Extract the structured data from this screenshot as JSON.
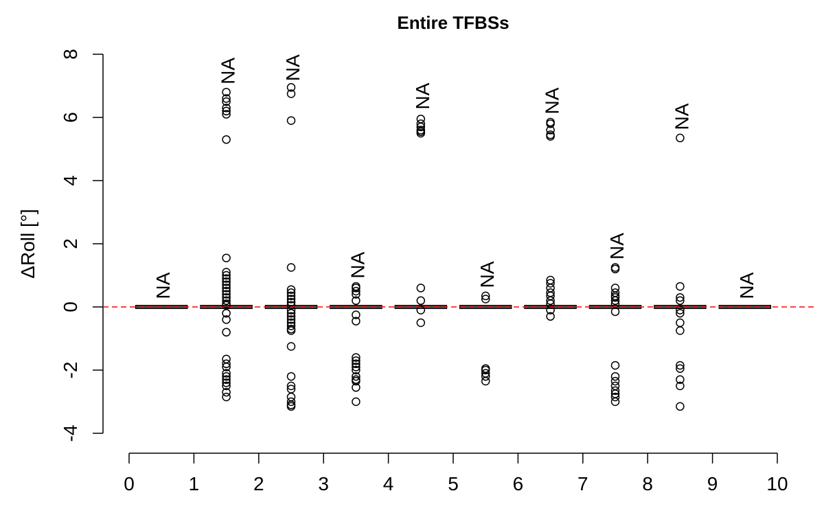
{
  "chart_data": {
    "type": "boxplot",
    "title": "Entire TFBSs",
    "xlabel": "",
    "ylabel": "ΔRoll [°]",
    "xlim": [
      0,
      10
    ],
    "ylim": [
      -4,
      8
    ],
    "xticks": [
      "0",
      "1",
      "2",
      "3",
      "4",
      "5",
      "6",
      "7",
      "8",
      "9",
      "10"
    ],
    "yticks": [
      "-4",
      "-2",
      "0",
      "2",
      "4",
      "6",
      "8"
    ],
    "reference_line": {
      "y": 0,
      "color": "#ff0000",
      "style": "dashed"
    },
    "groups": [
      {
        "x": 0.5,
        "median": 0,
        "label": "NA",
        "label_y": 0.25,
        "outliers": []
      },
      {
        "x": 1.5,
        "median": 0,
        "label": "NA",
        "label_y": 7.05,
        "outliers": [
          6.8,
          6.6,
          6.5,
          6.3,
          6.2,
          6.1,
          5.3,
          1.55,
          1.1,
          1.0,
          0.9,
          0.8,
          0.7,
          0.6,
          0.5,
          0.4,
          0.3,
          0.2,
          0.1,
          0.05,
          -0.2,
          -0.4,
          -0.8,
          -1.65,
          -1.8,
          -1.9,
          -2.1,
          -2.2,
          -2.3,
          -2.4,
          -2.5,
          -2.7,
          -2.85
        ]
      },
      {
        "x": 2.5,
        "median": 0,
        "label": "NA",
        "label_y": 7.15,
        "outliers": [
          6.95,
          6.75,
          5.9,
          1.25,
          0.55,
          0.45,
          0.35,
          0.25,
          0.15,
          0.05,
          -0.1,
          -0.2,
          -0.3,
          -0.4,
          -0.5,
          -0.6,
          -0.7,
          -0.75,
          -1.25,
          -2.2,
          -2.5,
          -2.6,
          -2.85,
          -3.0,
          -3.1,
          -3.15
        ]
      },
      {
        "x": 3.5,
        "median": 0,
        "label": "NA",
        "label_y": 0.9,
        "outliers": [
          0.65,
          0.6,
          0.5,
          0.4,
          0.2,
          -0.25,
          -0.45,
          -1.6,
          -1.7,
          -1.8,
          -1.9,
          -2.0,
          -2.2,
          -2.3,
          -2.35,
          -2.55,
          -3.0
        ]
      },
      {
        "x": 4.5,
        "median": 0,
        "label": "NA",
        "label_y": 6.25,
        "outliers": [
          5.95,
          5.8,
          5.7,
          5.6,
          5.55,
          5.5,
          0.6,
          0.2,
          -0.1,
          -0.5
        ]
      },
      {
        "x": 5.5,
        "median": 0,
        "label": "NA",
        "label_y": 0.6,
        "outliers": [
          0.35,
          0.25,
          -1.95,
          -2.0,
          -2.1,
          -2.2,
          -2.35
        ]
      },
      {
        "x": 6.5,
        "median": 0,
        "label": "NA",
        "label_y": 6.1,
        "outliers": [
          5.85,
          5.8,
          5.6,
          5.45,
          5.4,
          0.85,
          0.75,
          0.6,
          0.45,
          0.35,
          0.2,
          0.1,
          -0.1,
          -0.3
        ]
      },
      {
        "x": 7.5,
        "median": 0,
        "label": "NA",
        "label_y": 1.5,
        "outliers": [
          1.25,
          1.2,
          0.6,
          0.45,
          0.35,
          0.3,
          0.2,
          0.1,
          -0.15,
          -1.85,
          -2.2,
          -2.35,
          -2.5,
          -2.65,
          -2.75,
          -2.85,
          -3.0
        ]
      },
      {
        "x": 8.5,
        "median": 0,
        "label": "NA",
        "label_y": 5.6,
        "outliers": [
          5.35,
          0.65,
          0.3,
          0.2,
          -0.1,
          -0.2,
          -0.5,
          -0.75,
          -1.85,
          -1.95,
          -2.3,
          -2.5,
          -3.15
        ]
      },
      {
        "x": 9.5,
        "median": 0,
        "label": "NA",
        "label_y": 0.25,
        "outliers": []
      }
    ]
  }
}
